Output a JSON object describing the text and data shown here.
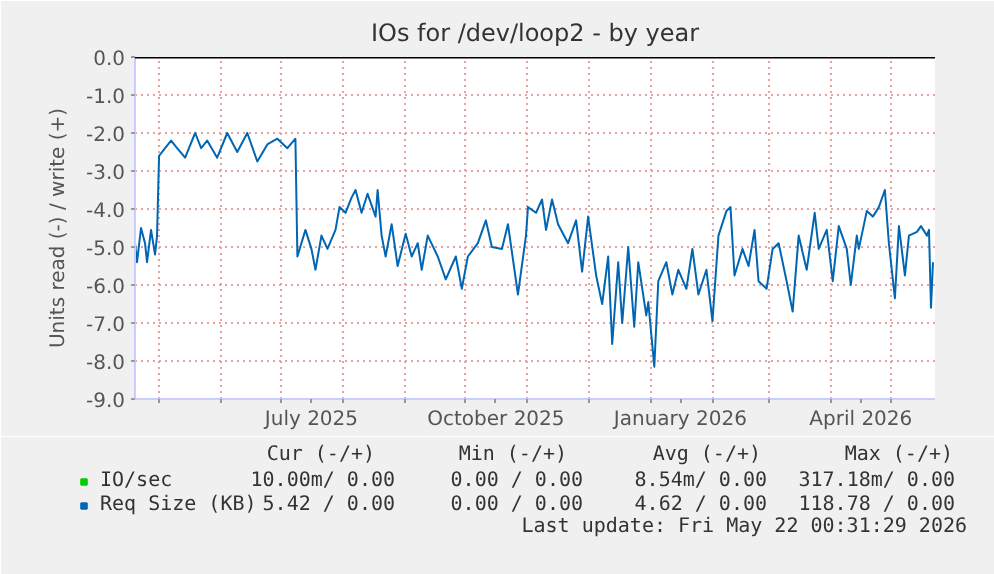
{
  "chart_data": {
    "type": "line",
    "title": "IOs for /dev/loop2 - by year",
    "ylabel": "Units read (-) / write (+)",
    "x": [
      "2025-04-19",
      "2025-04-20",
      "2025-04-22",
      "2025-04-24",
      "2025-04-25",
      "2025-04-27",
      "2025-04-29",
      "2025-04-30",
      "2025-05-01",
      "2025-05-04",
      "2025-05-07",
      "2025-05-10",
      "2025-05-14",
      "2025-05-19",
      "2025-05-22",
      "2025-05-25",
      "2025-05-30",
      "2025-06-04",
      "2025-06-09",
      "2025-06-14",
      "2025-06-19",
      "2025-06-24",
      "2025-06-29",
      "2025-07-04",
      "2025-07-08",
      "2025-07-09",
      "2025-07-13",
      "2025-07-16",
      "2025-07-18",
      "2025-07-21",
      "2025-07-24",
      "2025-07-28",
      "2025-07-30",
      "2025-08-02",
      "2025-08-05",
      "2025-08-07",
      "2025-08-10",
      "2025-08-13",
      "2025-08-17",
      "2025-08-18",
      "2025-08-20",
      "2025-08-22",
      "2025-08-25",
      "2025-08-28",
      "2025-09-01",
      "2025-09-04",
      "2025-09-07",
      "2025-09-09",
      "2025-09-12",
      "2025-09-17",
      "2025-09-21",
      "2025-09-26",
      "2025-09-29",
      "2025-10-02",
      "2025-10-07",
      "2025-10-11",
      "2025-10-14",
      "2025-10-19",
      "2025-10-22",
      "2025-10-27",
      "2025-10-31",
      "2025-11-01",
      "2025-11-05",
      "2025-11-08",
      "2025-11-10",
      "2025-11-13",
      "2025-11-16",
      "2025-11-21",
      "2025-11-25",
      "2025-11-28",
      "2025-12-01",
      "2025-12-05",
      "2025-12-08",
      "2025-12-11",
      "2025-12-13",
      "2025-12-16",
      "2025-12-18",
      "2025-12-21",
      "2025-12-24",
      "2025-12-26",
      "2025-12-30",
      "2025-12-31",
      "2026-01-03",
      "2026-01-05",
      "2026-01-09",
      "2026-01-12",
      "2026-01-15",
      "2026-01-19",
      "2026-01-22",
      "2026-01-25",
      "2026-01-29",
      "2026-02-01",
      "2026-02-04",
      "2026-02-08",
      "2026-02-10",
      "2026-02-12",
      "2026-02-16",
      "2026-02-19",
      "2026-02-22",
      "2026-02-24",
      "2026-02-28",
      "2026-03-03",
      "2026-03-06",
      "2026-03-10",
      "2026-03-13",
      "2026-03-16",
      "2026-03-20",
      "2026-03-24",
      "2026-03-26",
      "2026-03-30",
      "2026-04-02",
      "2026-04-05",
      "2026-04-09",
      "2026-04-11",
      "2026-04-14",
      "2026-04-15",
      "2026-04-19",
      "2026-04-22",
      "2026-04-25",
      "2026-04-28",
      "2026-04-30",
      "2026-05-03",
      "2026-05-05",
      "2026-05-08",
      "2026-05-10",
      "2026-05-14",
      "2026-05-16",
      "2026-05-19",
      "2026-05-20",
      "2026-05-21",
      "2026-05-22"
    ],
    "series": [
      {
        "name": "IO/sec",
        "color": "#00cc00",
        "values": [
          null,
          null,
          null,
          null,
          null,
          null,
          null,
          null,
          null,
          null,
          null,
          null,
          null,
          null,
          null,
          null,
          null,
          null,
          null,
          null,
          null,
          null,
          null,
          null,
          null,
          null,
          null,
          null,
          null,
          null,
          null,
          null,
          null,
          null,
          null,
          null,
          null,
          null,
          null,
          null,
          null,
          null,
          null,
          null,
          null,
          null,
          null,
          null,
          null,
          null,
          null,
          null,
          null,
          null,
          null,
          null,
          null,
          null,
          null,
          null,
          null,
          null,
          null,
          null,
          null,
          null,
          null,
          null,
          null,
          null,
          null,
          null,
          null,
          null,
          null,
          null,
          null,
          null,
          null,
          null,
          null,
          null,
          null,
          null,
          null,
          null,
          null,
          null,
          null,
          null,
          null,
          null,
          null,
          null,
          null,
          null,
          null,
          null,
          null,
          null,
          null,
          null,
          null,
          null,
          null,
          null,
          null,
          null,
          null,
          null,
          null,
          null,
          null,
          null,
          null,
          null,
          null,
          null,
          null,
          null,
          null,
          null,
          null,
          null,
          null,
          null,
          null,
          null,
          null,
          null,
          null
        ]
      },
      {
        "name": "Req Size (KB)",
        "color": "#0066b3",
        "values": [
          -4.9,
          -5.4,
          -4.5,
          -4.9,
          -5.4,
          -4.55,
          -5.2,
          -4.7,
          -2.6,
          -2.4,
          -2.2,
          -2.4,
          -2.65,
          -2.0,
          -2.4,
          -2.2,
          -2.65,
          -2.0,
          -2.5,
          -2.0,
          -2.75,
          -2.3,
          -2.15,
          -2.4,
          -2.15,
          -5.25,
          -4.55,
          -5.05,
          -5.6,
          -4.7,
          -5.05,
          -4.55,
          -3.95,
          -4.1,
          -3.7,
          -3.5,
          -4.1,
          -3.6,
          -4.2,
          -3.5,
          -4.7,
          -5.25,
          -4.4,
          -5.5,
          -4.65,
          -5.25,
          -4.9,
          -5.6,
          -4.7,
          -5.25,
          -5.85,
          -5.25,
          -6.1,
          -5.25,
          -4.9,
          -4.3,
          -5.0,
          -5.05,
          -4.4,
          -6.25,
          -4.7,
          -3.95,
          -4.1,
          -3.75,
          -4.55,
          -3.75,
          -4.4,
          -4.9,
          -4.3,
          -5.65,
          -4.2,
          -5.75,
          -6.5,
          -5.25,
          -7.55,
          -5.4,
          -7.0,
          -5.0,
          -7.1,
          -5.4,
          -6.8,
          -6.45,
          -8.15,
          -5.9,
          -5.4,
          -6.25,
          -5.6,
          -6.1,
          -5.05,
          -6.25,
          -5.6,
          -6.95,
          -4.7,
          -4.05,
          -3.95,
          -5.75,
          -5.05,
          -5.5,
          -4.55,
          -5.9,
          -6.1,
          -5.05,
          -4.9,
          -5.9,
          -6.7,
          -4.7,
          -5.6,
          -4.1,
          -5.05,
          -4.55,
          -5.9,
          -4.45,
          -5.05,
          -6.0,
          -4.7,
          -5.05,
          -4.05,
          -4.2,
          -3.95,
          -3.5,
          -4.9,
          -6.35,
          -4.45,
          -5.75,
          -4.7,
          -4.6,
          -4.45,
          -4.7,
          -4.55,
          -6.6,
          -5.4
        ]
      }
    ],
    "xlim": [
      "2025-04-19",
      "2026-05-23"
    ],
    "xticks": [
      {
        "value": "2025-05-01",
        "label": null
      },
      {
        "value": "2025-06-01",
        "label": null
      },
      {
        "value": "2025-07-01",
        "label": null
      },
      {
        "value": "2025-07-16",
        "label": "July 2025"
      },
      {
        "value": "2025-08-01",
        "label": null
      },
      {
        "value": "2025-09-01",
        "label": null
      },
      {
        "value": "2025-10-01",
        "label": null
      },
      {
        "value": "2025-10-16",
        "label": "October 2025"
      },
      {
        "value": "2025-11-01",
        "label": null
      },
      {
        "value": "2025-12-01",
        "label": null
      },
      {
        "value": "2026-01-01",
        "label": null
      },
      {
        "value": "2026-01-16",
        "label": "January 2026"
      },
      {
        "value": "2026-02-01",
        "label": null
      },
      {
        "value": "2026-03-01",
        "label": null
      },
      {
        "value": "2026-04-01",
        "label": null
      },
      {
        "value": "2026-04-16",
        "label": "April 2026"
      },
      {
        "value": "2026-05-01",
        "label": null
      }
    ],
    "ylim": [
      -9,
      0
    ],
    "yticks": [
      {
        "value": 0,
        "label": "0.0"
      },
      {
        "value": -1,
        "label": "-1.0"
      },
      {
        "value": -2,
        "label": "-2.0"
      },
      {
        "value": -3,
        "label": "-3.0"
      },
      {
        "value": -4,
        "label": "-4.0"
      },
      {
        "value": -5,
        "label": "-5.0"
      },
      {
        "value": -6,
        "label": "-6.0"
      },
      {
        "value": -7,
        "label": "-7.0"
      },
      {
        "value": -8,
        "label": "-8.0"
      },
      {
        "value": -9,
        "label": "-9.0"
      }
    ],
    "ref_lines": [
      {
        "axis": "y",
        "value": 0,
        "color": "#000000"
      }
    ],
    "grid": true,
    "legend": "bottom left",
    "annotations": [
      "Cur (-/+)",
      "Min (-/+)",
      "Avg (-/+)",
      "Max (-/+)",
      "10.00m/ 0.00",
      "0.00 / 0.00",
      "8.54m/ 0.00",
      "317.18m/ 0.00",
      "5.42 / 0.00",
      "0.00 / 0.00",
      "4.62 / 0.00",
      "118.78 / 0.00",
      "Last update: Fri May 22 00:31:29 2026"
    ]
  }
}
